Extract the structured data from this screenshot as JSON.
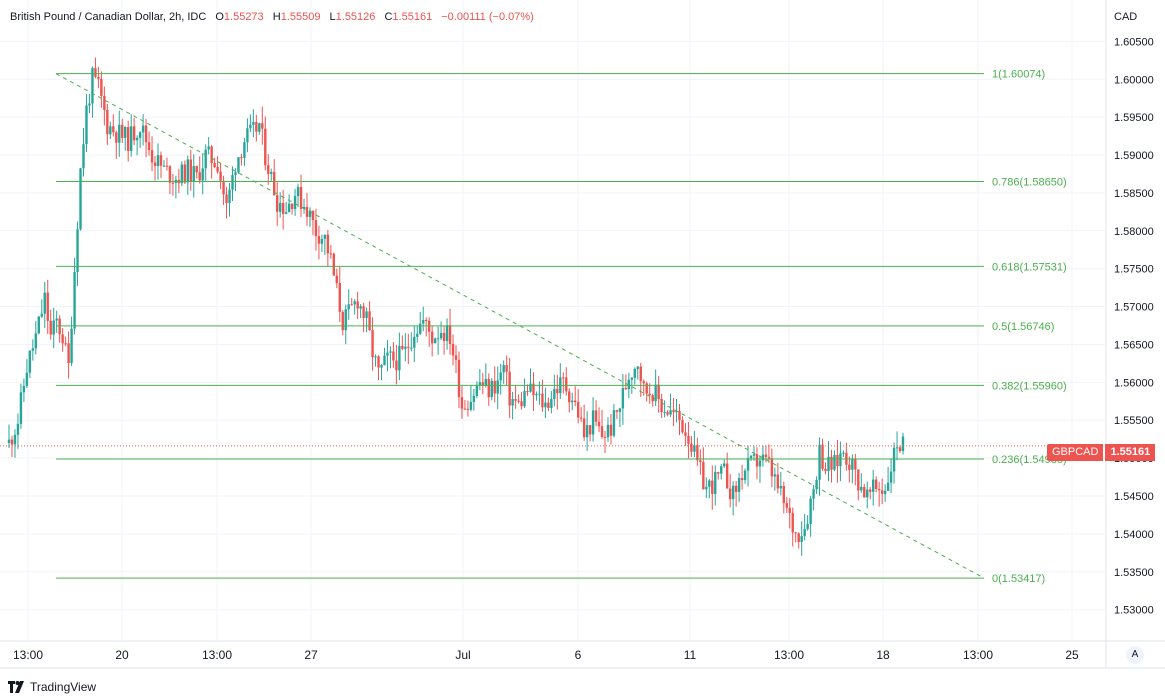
{
  "header": {
    "title": "British Pound / Canadian Dollar, 2h, IDC",
    "open_label": "O",
    "open": "1.55273",
    "high_label": "H",
    "high": "1.55509",
    "low_label": "L",
    "low": "1.55126",
    "close_label": "C",
    "close": "1.55161",
    "change": "−0.00111 (−0.07%)"
  },
  "currency": "CAD",
  "price_tag": {
    "symbol": "GBPCAD",
    "price": "1.55161"
  },
  "branding": "TradingView",
  "auto_button": "A",
  "colors": {
    "up": "#26a69a",
    "down": "#ef5350",
    "fib": "#4caf50",
    "grid": "#f0f3fa"
  },
  "chart_data": {
    "type": "candlestick",
    "ylim": [
      1.526,
      1.6065
    ],
    "y_ticks": [
      "1.60500",
      "1.60000",
      "1.59500",
      "1.59000",
      "1.58500",
      "1.58000",
      "1.57500",
      "1.57000",
      "1.56500",
      "1.56000",
      "1.55500",
      "1.55000",
      "1.54500",
      "1.54000",
      "1.53500",
      "1.53000"
    ],
    "x_ticks": [
      "13:00",
      "20",
      "13:00",
      "27",
      "Jul",
      "6",
      "11",
      "13:00",
      "18",
      "13:00",
      "25"
    ],
    "fib_levels": [
      {
        "ratio": 1,
        "price": 1.60074,
        "label": "1(1.60074)"
      },
      {
        "ratio": 0.786,
        "price": 1.5865,
        "label": "0.786(1.58650)"
      },
      {
        "ratio": 0.618,
        "price": 1.57531,
        "label": "0.618(1.57531)"
      },
      {
        "ratio": 0.5,
        "price": 1.56746,
        "label": "0.5(1.56746)"
      },
      {
        "ratio": 0.382,
        "price": 1.5596,
        "label": "0.382(1.55960)"
      },
      {
        "ratio": 0.236,
        "price": 1.54988,
        "label": "0.236(1.54988)"
      },
      {
        "ratio": 0,
        "price": 1.53417,
        "label": "0(1.53417)"
      }
    ],
    "trendline": {
      "from": 1.60074,
      "to": 1.53417
    },
    "price_path": [
      [
        0,
        1.552
      ],
      [
        3,
        1.555
      ],
      [
        6,
        1.562
      ],
      [
        9,
        1.566
      ],
      [
        12,
        1.571
      ],
      [
        14,
        1.566
      ],
      [
        16,
        1.568
      ],
      [
        18,
        1.566
      ],
      [
        20,
        1.562
      ],
      [
        22,
        1.575
      ],
      [
        24,
        1.588
      ],
      [
        26,
        1.596
      ],
      [
        28,
        1.6
      ],
      [
        30,
        1.599
      ],
      [
        33,
        1.594
      ],
      [
        36,
        1.593
      ],
      [
        40,
        1.592
      ],
      [
        44,
        1.594
      ],
      [
        48,
        1.59
      ],
      [
        52,
        1.588
      ],
      [
        56,
        1.587
      ],
      [
        60,
        1.588
      ],
      [
        63,
        1.587
      ],
      [
        66,
        1.59
      ],
      [
        70,
        1.589
      ],
      [
        73,
        1.583
      ],
      [
        76,
        1.589
      ],
      [
        79,
        1.592
      ],
      [
        82,
        1.593
      ],
      [
        84,
        1.594
      ],
      [
        86,
        1.59
      ],
      [
        88,
        1.587
      ],
      [
        90,
        1.584
      ],
      [
        93,
        1.583
      ],
      [
        96,
        1.585
      ],
      [
        100,
        1.583
      ],
      [
        103,
        1.58
      ],
      [
        106,
        1.579
      ],
      [
        108,
        1.576
      ],
      [
        110,
        1.572
      ],
      [
        112,
        1.568
      ],
      [
        114,
        1.569
      ],
      [
        117,
        1.571
      ],
      [
        120,
        1.568
      ],
      [
        122,
        1.564
      ],
      [
        124,
        1.561
      ],
      [
        127,
        1.563
      ],
      [
        130,
        1.563
      ],
      [
        133,
        1.564
      ],
      [
        136,
        1.567
      ],
      [
        139,
        1.568
      ],
      [
        142,
        1.566
      ],
      [
        145,
        1.567
      ],
      [
        148,
        1.566
      ],
      [
        150,
        1.562
      ],
      [
        152,
        1.557
      ],
      [
        155,
        1.558
      ],
      [
        158,
        1.56
      ],
      [
        161,
        1.559
      ],
      [
        164,
        1.56
      ],
      [
        166,
        1.562
      ],
      [
        168,
        1.558
      ],
      [
        171,
        1.557
      ],
      [
        174,
        1.559
      ],
      [
        177,
        1.558
      ],
      [
        180,
        1.557
      ],
      [
        183,
        1.559
      ],
      [
        186,
        1.56
      ],
      [
        189,
        1.558
      ],
      [
        191,
        1.556
      ],
      [
        193,
        1.553
      ],
      [
        196,
        1.555
      ],
      [
        199,
        1.553
      ],
      [
        202,
        1.554
      ],
      [
        205,
        1.557
      ],
      [
        208,
        1.561
      ],
      [
        211,
        1.563
      ],
      [
        213,
        1.559
      ],
      [
        216,
        1.559
      ],
      [
        219,
        1.557
      ],
      [
        222,
        1.556
      ],
      [
        225,
        1.555
      ],
      [
        228,
        1.553
      ],
      [
        231,
        1.549
      ],
      [
        234,
        1.546
      ],
      [
        237,
        1.547
      ],
      [
        240,
        1.548
      ],
      [
        243,
        1.545
      ],
      [
        246,
        1.548
      ],
      [
        249,
        1.549
      ],
      [
        252,
        1.55
      ],
      [
        255,
        1.549
      ],
      [
        258,
        1.546
      ],
      [
        261,
        1.543
      ],
      [
        264,
        1.54
      ],
      [
        267,
        1.541
      ],
      [
        270,
        1.546
      ],
      [
        272,
        1.551
      ],
      [
        274,
        1.549
      ],
      [
        277,
        1.549
      ],
      [
        280,
        1.551
      ],
      [
        283,
        1.549
      ],
      [
        285,
        1.547
      ],
      [
        288,
        1.545
      ],
      [
        291,
        1.546
      ],
      [
        294,
        1.546
      ],
      [
        296,
        1.549
      ],
      [
        298,
        1.552
      ],
      [
        300,
        1.5516
      ]
    ]
  }
}
